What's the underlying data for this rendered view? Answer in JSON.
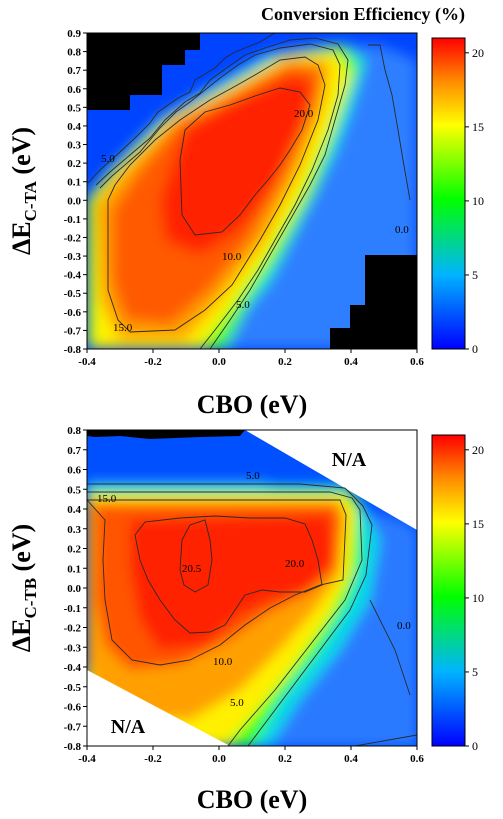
{
  "title": "Conversion Efficiency (%)",
  "colorbar": {
    "min": 0,
    "max": 21,
    "ticks": [
      0,
      5,
      10,
      15,
      20
    ]
  },
  "chart_data": [
    {
      "type": "heatmap",
      "xlabel": "CBO (eV)",
      "ylabel_main": "ΔE",
      "ylabel_sub": "C-TA",
      "ylabel_tail": " (eV)",
      "xlim": [
        -0.4,
        0.6
      ],
      "ylim": [
        -0.8,
        0.9
      ],
      "xticks": [
        "-0.4",
        "-0.2",
        "0.0",
        "0.2",
        "0.4",
        "0.6"
      ],
      "yticks": [
        "-0.8",
        "-0.7",
        "-0.6",
        "-0.5",
        "-0.4",
        "-0.3",
        "-0.2",
        "-0.1",
        "0.0",
        "0.1",
        "0.2",
        "0.3",
        "0.4",
        "0.5",
        "0.6",
        "0.7",
        "0.8",
        "0.9"
      ],
      "contour_labels": [
        "20.0",
        "15.0",
        "10.0",
        "5.0",
        "5.0",
        "0.0"
      ]
    },
    {
      "type": "heatmap",
      "xlabel": "CBO (eV)",
      "ylabel_main": "ΔE",
      "ylabel_sub": "C-TB",
      "ylabel_tail": " (eV)",
      "xlim": [
        -0.4,
        0.6
      ],
      "ylim": [
        -0.8,
        0.8
      ],
      "xticks": [
        "-0.4",
        "-0.2",
        "0.0",
        "0.2",
        "0.4",
        "0.6"
      ],
      "yticks": [
        "-0.8",
        "-0.7",
        "-0.6",
        "-0.5",
        "-0.4",
        "-0.3",
        "-0.2",
        "-0.1",
        "0.0",
        "0.1",
        "0.2",
        "0.3",
        "0.4",
        "0.5",
        "0.6",
        "0.7",
        "0.8"
      ],
      "contour_labels": [
        "20.5",
        "20.0",
        "15.0",
        "10.0",
        "5.0",
        "5.0",
        "0.0"
      ],
      "na_labels": [
        "N/A",
        "N/A"
      ]
    }
  ]
}
